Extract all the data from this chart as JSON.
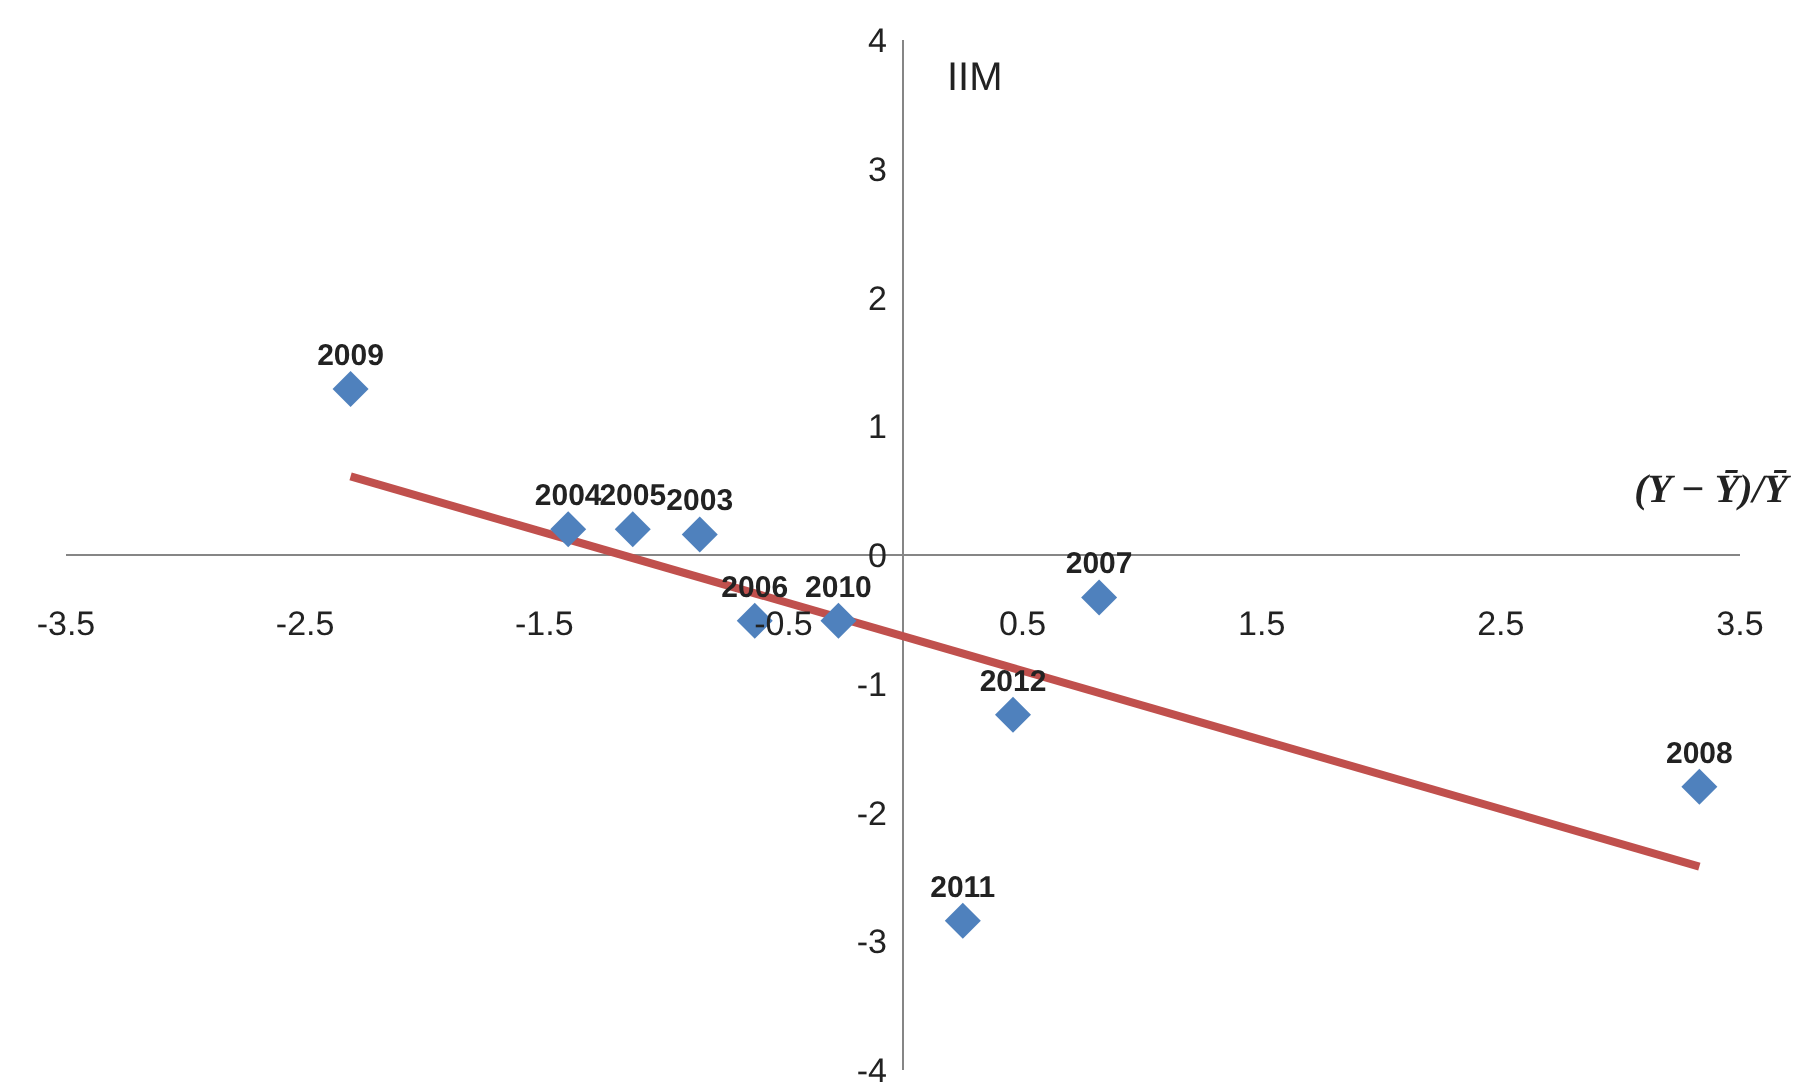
{
  "chart_data": {
    "type": "scatter",
    "ylabel": "IIM",
    "xlabel": "(Y − Ȳ)/Ȳ",
    "xlim": [
      -3.5,
      3.5
    ],
    "xticks": [
      -3.5,
      -2.5,
      -1.5,
      -0.5,
      0.5,
      1.5,
      2.5,
      3.5
    ],
    "ylim": [
      -4,
      4
    ],
    "yticks": [
      -4,
      -3,
      -2,
      -1,
      0,
      1,
      2,
      3,
      4
    ],
    "grid": false,
    "legend": false,
    "series": [
      {
        "type": "scatter",
        "color": "#4f81bd",
        "marker": "diamond",
        "x": [
          -2.31,
          -1.4,
          -1.13,
          -0.85,
          -0.62,
          -0.27,
          0.82,
          0.46,
          0.25,
          3.33
        ],
        "values": [
          1.29,
          0.2,
          0.2,
          0.16,
          -0.51,
          -0.51,
          -0.33,
          -1.24,
          -2.84,
          -1.8
        ]
      },
      {
        "type": "line",
        "color": "#c0504d",
        "marker": "none",
        "x": [
          -2.31,
          3.33
        ],
        "values": [
          0.61,
          -2.42
        ]
      }
    ],
    "annotations": [
      {
        "text": "2009",
        "x": -2.31,
        "y": 1.29
      },
      {
        "text": "2004",
        "x": -1.4,
        "y": 0.2
      },
      {
        "text": "2005",
        "x": -1.13,
        "y": 0.2
      },
      {
        "text": "2003",
        "x": -0.85,
        "y": 0.16
      },
      {
        "text": "2006",
        "x": -0.62,
        "y": -0.51
      },
      {
        "text": "2010",
        "x": -0.27,
        "y": -0.51
      },
      {
        "text": "2007",
        "x": 0.82,
        "y": -0.33
      },
      {
        "text": "2012",
        "x": 0.46,
        "y": -1.24
      },
      {
        "text": "2011",
        "x": 0.25,
        "y": -2.84
      },
      {
        "text": "2008",
        "x": 3.33,
        "y": -1.8
      }
    ]
  }
}
